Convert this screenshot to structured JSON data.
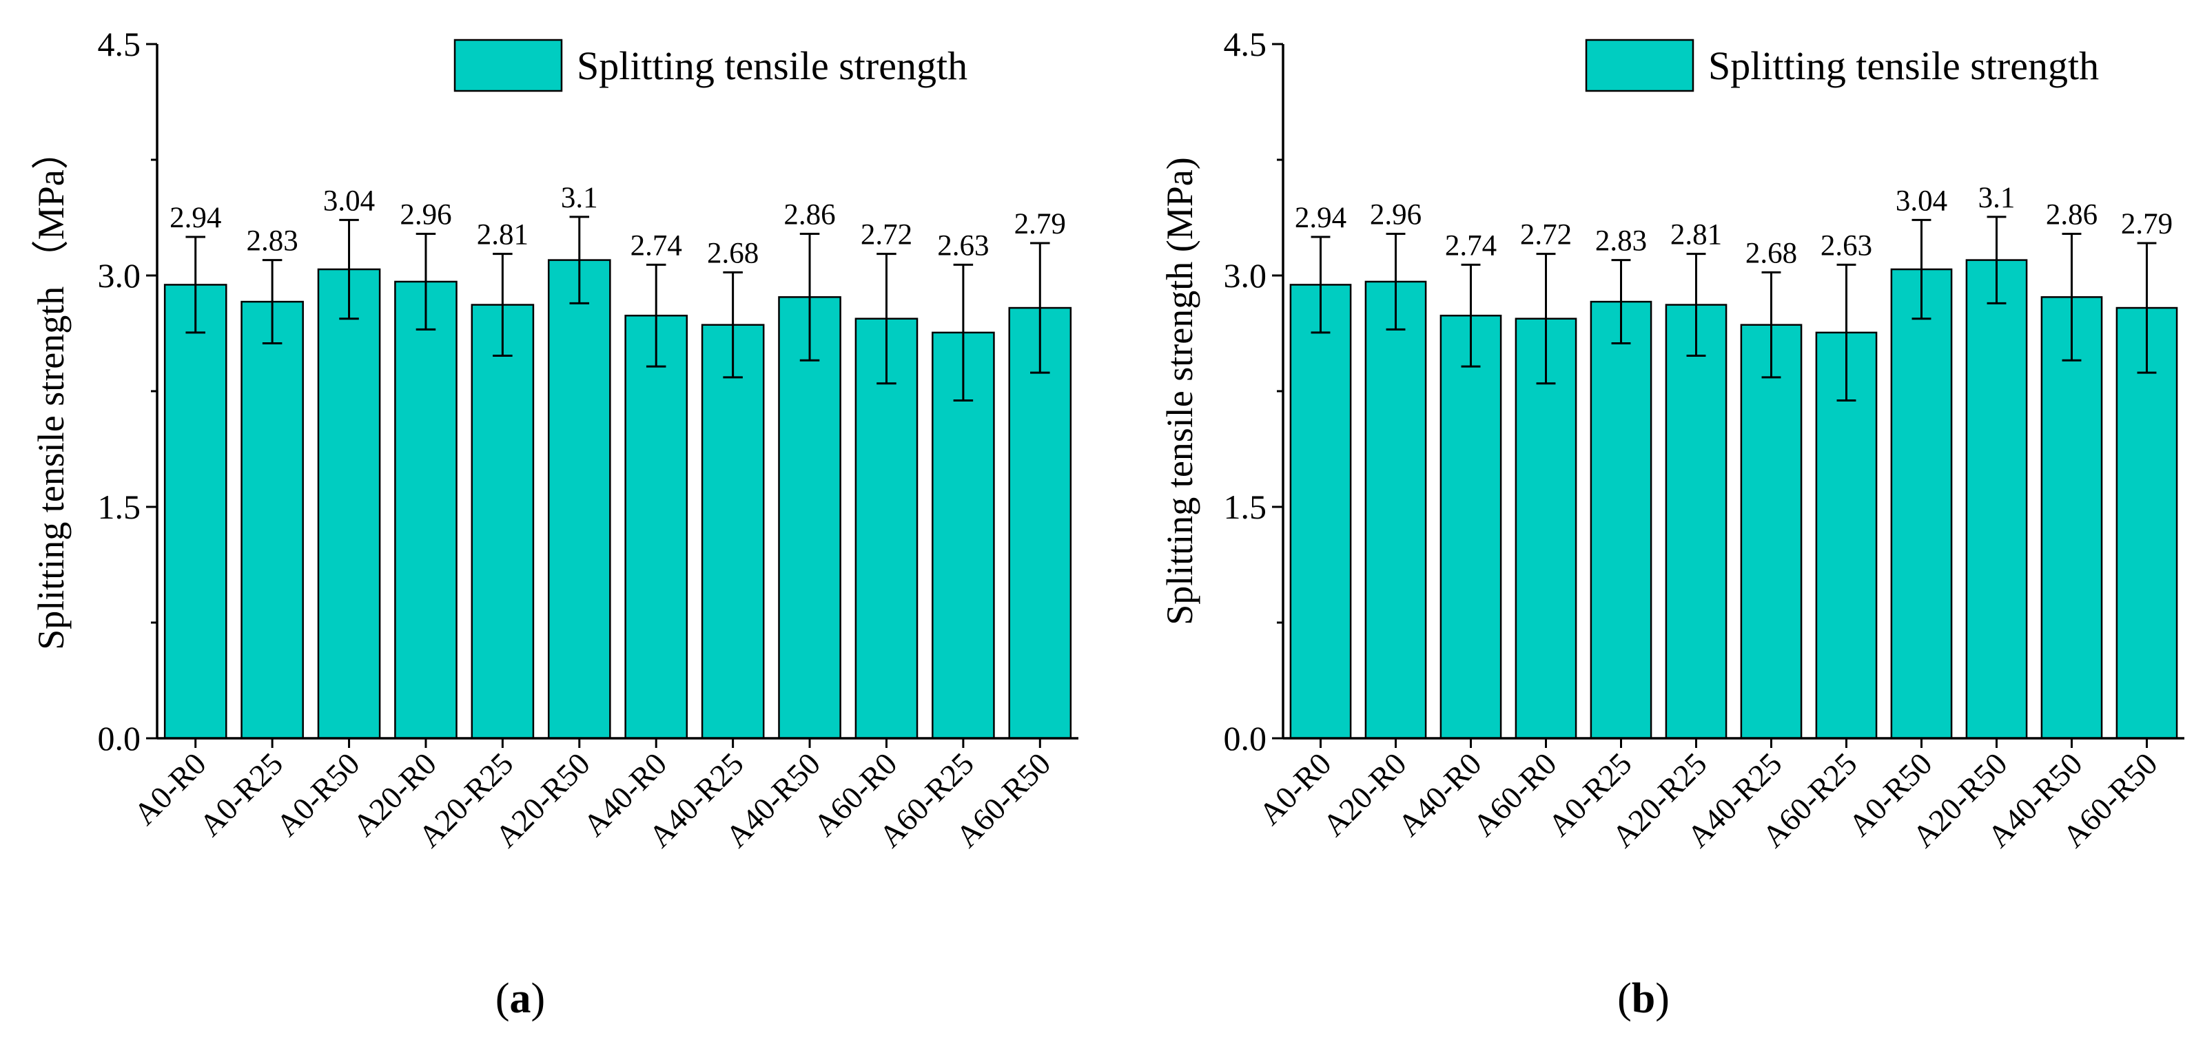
{
  "colors": {
    "bar": "#00cdc1",
    "bar_stroke": "#000000",
    "axis": "#000000"
  },
  "chart_data": [
    {
      "type": "bar",
      "panel_label": {
        "open": "(",
        "letter": "a",
        "close": ")"
      },
      "categories": [
        "A0-R0",
        "A0-R25",
        "A0-R50",
        "A20-R0",
        "A20-R25",
        "A20-R50",
        "A40-R0",
        "A40-R25",
        "A40-R50",
        "A60-R0",
        "A60-R25",
        "A60-R50"
      ],
      "values": [
        2.94,
        2.83,
        3.04,
        2.96,
        2.81,
        3.1,
        2.74,
        2.68,
        2.86,
        2.72,
        2.63,
        2.79
      ],
      "value_labels": [
        "2.94",
        "2.83",
        "3.04",
        "2.96",
        "2.81",
        "3.1",
        "2.74",
        "2.68",
        "2.86",
        "2.72",
        "2.63",
        "2.79"
      ],
      "errors": [
        0.31,
        0.27,
        0.32,
        0.31,
        0.33,
        0.28,
        0.33,
        0.34,
        0.41,
        0.42,
        0.44,
        0.42
      ],
      "series_name": "Splitting tensile strength",
      "ylabel": "Splitting tensile strength （MPa）",
      "ylim": [
        0,
        4.5
      ],
      "yticks": [
        0,
        1.5,
        3.0,
        4.5
      ],
      "ytick_labels": [
        "0.0",
        "1.5",
        "3.0",
        "4.5"
      ],
      "legend_position": "top-right",
      "grid": false
    },
    {
      "type": "bar",
      "panel_label": {
        "open": "(",
        "letter": "b",
        "close": ")"
      },
      "categories": [
        "A0-R0",
        "A20-R0",
        "A40-R0",
        "A60-R0",
        "A0-R25",
        "A20-R25",
        "A40-R25",
        "A60-R25",
        "A0-R50",
        "A20-R50",
        "A40-R50",
        "A60-R50"
      ],
      "values": [
        2.94,
        2.96,
        2.74,
        2.72,
        2.83,
        2.81,
        2.68,
        2.63,
        3.04,
        3.1,
        2.86,
        2.79
      ],
      "value_labels": [
        "2.94",
        "2.96",
        "2.74",
        "2.72",
        "2.83",
        "2.81",
        "2.68",
        "2.63",
        "3.04",
        "3.1",
        "2.86",
        "2.79"
      ],
      "errors": [
        0.31,
        0.31,
        0.33,
        0.42,
        0.27,
        0.33,
        0.34,
        0.44,
        0.32,
        0.28,
        0.41,
        0.42
      ],
      "series_name": "Splitting tensile strength",
      "ylabel": "Splitting tensile strength (MPa)",
      "ylim": [
        0,
        4.5
      ],
      "yticks": [
        0,
        1.5,
        3.0,
        4.5
      ],
      "ytick_labels": [
        "0.0",
        "1.5",
        "3.0",
        "4.5"
      ],
      "legend_position": "top-right",
      "grid": false
    }
  ]
}
